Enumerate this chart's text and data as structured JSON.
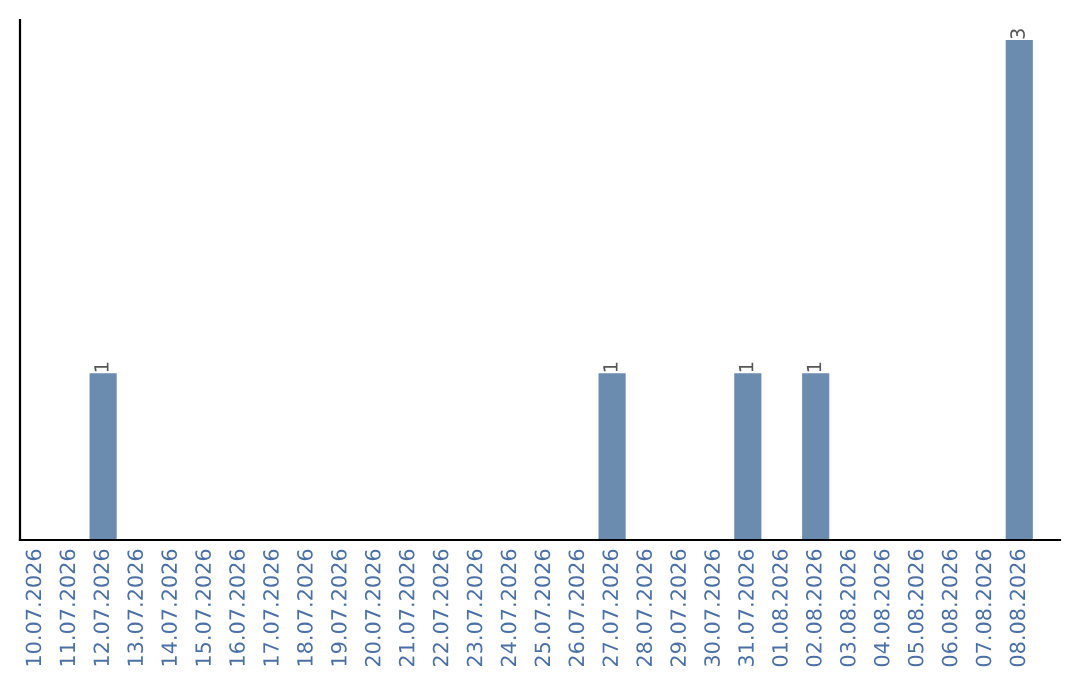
{
  "chart_data": {
    "type": "bar",
    "categories": [
      "10.07.2026",
      "11.07.2026",
      "12.07.2026",
      "13.07.2026",
      "14.07.2026",
      "15.07.2026",
      "16.07.2026",
      "17.07.2026",
      "18.07.2026",
      "19.07.2026",
      "20.07.2026",
      "21.07.2026",
      "22.07.2026",
      "23.07.2026",
      "24.07.2026",
      "25.07.2026",
      "26.07.2026",
      "27.07.2026",
      "28.07.2026",
      "29.07.2026",
      "30.07.2026",
      "31.07.2026",
      "01.08.2026",
      "02.08.2026",
      "03.08.2026",
      "04.08.2026",
      "05.08.2026",
      "06.08.2026",
      "07.08.2026",
      "08.08.2026"
    ],
    "values": [
      0,
      0,
      1,
      0,
      0,
      0,
      0,
      0,
      0,
      0,
      0,
      0,
      0,
      0,
      0,
      0,
      0,
      1,
      0,
      0,
      0,
      1,
      0,
      1,
      0,
      0,
      0,
      0,
      0,
      3
    ],
    "value_labels": [
      null,
      null,
      "1",
      null,
      null,
      null,
      null,
      null,
      null,
      null,
      null,
      null,
      null,
      null,
      null,
      null,
      null,
      "1",
      null,
      null,
      null,
      "1",
      null,
      "1",
      null,
      null,
      null,
      null,
      null,
      "3"
    ],
    "color": "#6b8cae",
    "tick_labels": "x",
    "grid": false,
    "legend": false
  }
}
